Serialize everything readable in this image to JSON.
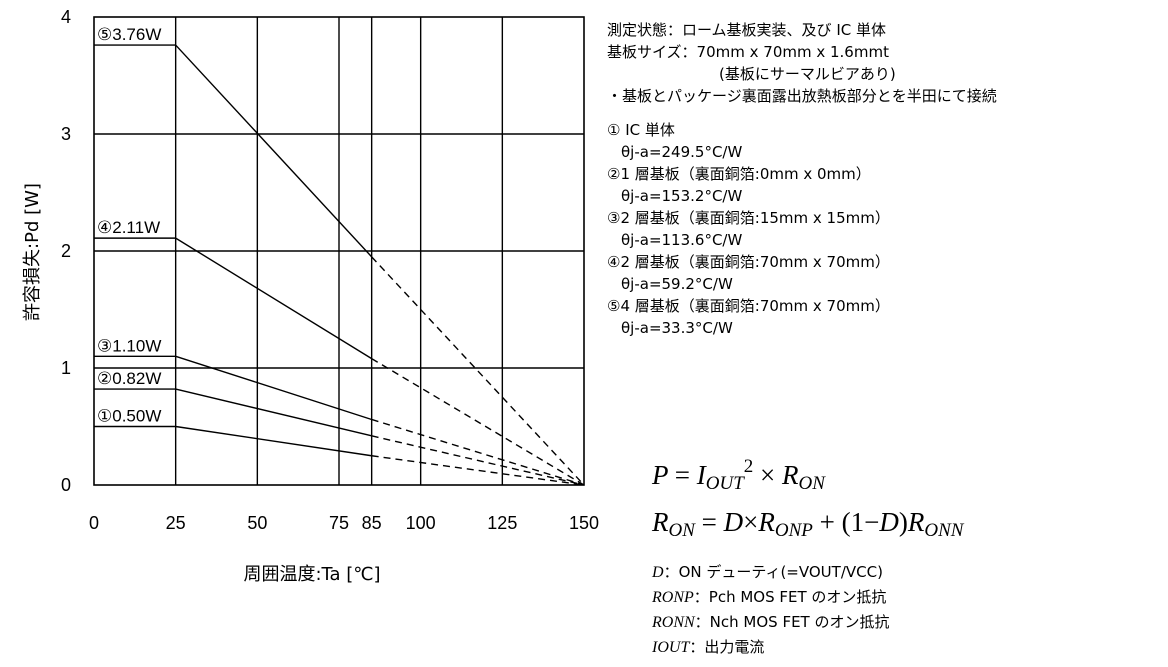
{
  "chart_data": {
    "type": "line",
    "xlabel": "周囲温度:Ta [℃]",
    "ylabel": "許容損失:Pd [W]",
    "xlim": [
      0,
      150
    ],
    "ylim": [
      0,
      4
    ],
    "x_ticks": [
      "0",
      "25",
      "50",
      "75",
      "85",
      "100",
      "125",
      "150"
    ],
    "x_tick_values": [
      0,
      25,
      50,
      75,
      85,
      100,
      125,
      150
    ],
    "y_ticks": [
      "0",
      "1",
      "2",
      "3",
      "4"
    ],
    "y_tick_values": [
      0,
      1,
      2,
      3,
      4
    ],
    "grid": true,
    "solid_until": 85,
    "series": [
      {
        "name": "①",
        "label": "①0.50W",
        "x": [
          0,
          25,
          85,
          150
        ],
        "y": [
          0.5,
          0.5,
          0.25,
          0
        ]
      },
      {
        "name": "②",
        "label": "②0.82W",
        "x": [
          0,
          25,
          85,
          150
        ],
        "y": [
          0.82,
          0.82,
          0.42,
          0
        ]
      },
      {
        "name": "③",
        "label": "③1.10W",
        "x": [
          0,
          25,
          85,
          150
        ],
        "y": [
          1.1,
          1.1,
          0.56,
          0
        ]
      },
      {
        "name": "④",
        "label": "④2.11W",
        "x": [
          0,
          25,
          85,
          150
        ],
        "y": [
          2.11,
          2.11,
          1.08,
          0
        ]
      },
      {
        "name": "⑤",
        "label": "⑤3.76W",
        "x": [
          0,
          25,
          85,
          150
        ],
        "y": [
          3.76,
          3.76,
          1.95,
          0
        ]
      }
    ]
  },
  "notes": {
    "line1": "測定状態：ローム基板実装、及び IC 単体",
    "line2": "基板サイズ：70mm x 70mm x 1.6mmt",
    "line3": "(基板にサーマルビアあり)",
    "line4": "・基板とパッケージ裏面露出放熱板部分とを半田にて接続",
    "items": [
      {
        "title": "① IC 単体",
        "theta": "θj-a=249.5°C/W"
      },
      {
        "title": "②1 層基板（裏面銅箔:0mm x 0mm）",
        "theta": "θj-a=153.2°C/W"
      },
      {
        "title": "③2 層基板（裏面銅箔:15mm x 15mm）",
        "theta": "θj-a=113.6°C/W"
      },
      {
        "title": "④2 層基板（裏面銅箔:70mm x 70mm）",
        "theta": "θj-a=59.2°C/W"
      },
      {
        "title": "⑤4 層基板（裏面銅箔:70mm x 70mm）",
        "theta": "θj-a=33.3°C/W"
      }
    ]
  },
  "equations": {
    "p": "P",
    "i": "I",
    "out": "OUT",
    "sq": "2",
    "times": "×",
    "eq": "=",
    "r": "R",
    "on": "ON",
    "onp": "ONP",
    "onn": "ONN",
    "d": "D",
    "plus": "+",
    "lparen": "(",
    "one": "1",
    "minus": "−",
    "rparen": ")"
  },
  "definitions": [
    {
      "sym": "D",
      "text": "：ON デューティ(=VOUT/VCC)"
    },
    {
      "sym": "RONP",
      "text": "：Pch MOS FET のオン抵抗"
    },
    {
      "sym": "RONN",
      "text": "：Nch MOS FET のオン抵抗"
    },
    {
      "sym": "IOUT",
      "text": "：出力電流"
    }
  ]
}
